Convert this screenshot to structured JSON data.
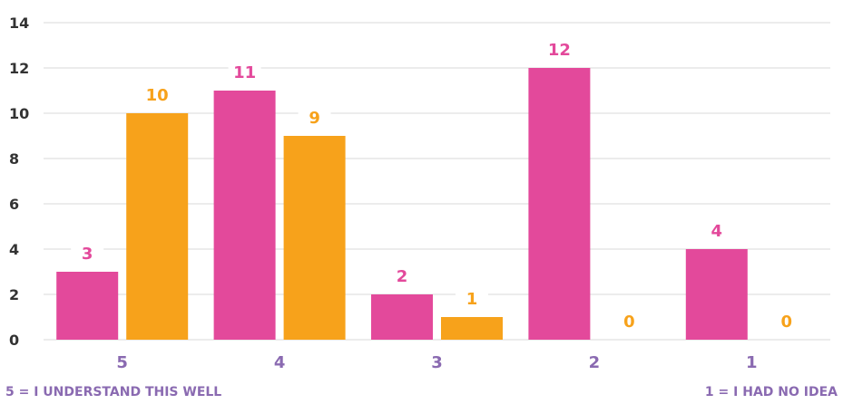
{
  "chart_data": {
    "type": "bar",
    "title": "",
    "xlabel": "",
    "ylabel": "",
    "categories": [
      "5",
      "4",
      "3",
      "2",
      "1"
    ],
    "series": [
      {
        "values": [
          3,
          11,
          2,
          12,
          4
        ],
        "color": "#e3499b"
      },
      {
        "values": [
          10,
          9,
          1,
          0,
          0
        ],
        "color": "#f7a21b"
      }
    ],
    "ylim": [
      0,
      14
    ],
    "yticks": [
      0,
      2,
      4,
      6,
      8,
      10,
      12,
      14
    ],
    "grid": true,
    "data_labels": true,
    "tick_label_color": "#8a6ab1",
    "gridline_color": "#d9d9d9"
  },
  "notes": {
    "left": "5 = I UNDERSTAND THIS WELL",
    "right": "1 = I HAD NO IDEA",
    "color": "#8a6ab1"
  }
}
